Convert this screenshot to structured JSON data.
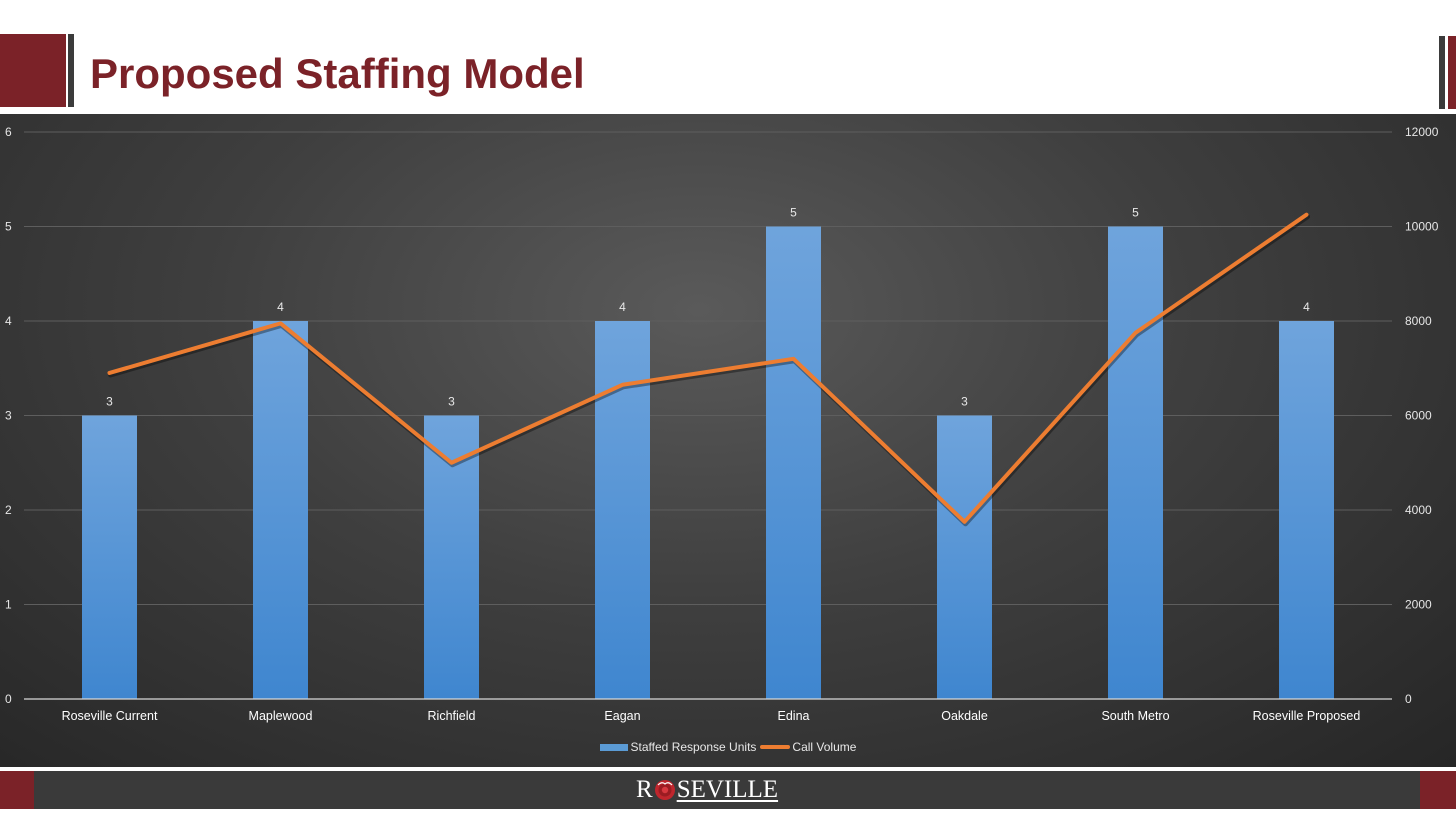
{
  "slide": {
    "title": "Proposed Staffing Model"
  },
  "colors": {
    "brand": "#7b2228",
    "bar": "#5b9bd5",
    "line": "#ed7d31"
  },
  "footer": {
    "logo_r": "R",
    "logo_rest": "SEVILLE",
    "logo_mark_icon": "rose-icon"
  },
  "chart_data": {
    "type": "bar",
    "categories": [
      "Roseville Current",
      "Maplewood",
      "Richfield",
      "Eagan",
      "Edina",
      "Oakdale",
      "South Metro",
      "Roseville Proposed"
    ],
    "series": [
      {
        "name": "Staffed Response Units",
        "type": "bar",
        "axis": "left",
        "values": [
          3,
          4,
          3,
          4,
          5,
          3,
          5,
          4
        ],
        "data_labels": [
          "3",
          "4",
          "3",
          "4",
          "5",
          "3",
          "5",
          "4"
        ]
      },
      {
        "name": "Call Volume",
        "type": "line",
        "axis": "right",
        "values": [
          6900,
          7950,
          5000,
          6650,
          7200,
          3750,
          7750,
          10250
        ]
      }
    ],
    "y_left": {
      "range": [
        0,
        6
      ],
      "ticks": [
        "0",
        "1",
        "2",
        "3",
        "4",
        "5",
        "6"
      ]
    },
    "y_right": {
      "range": [
        0,
        12000
      ],
      "ticks": [
        "0",
        "2000",
        "4000",
        "6000",
        "8000",
        "10000",
        "12000"
      ]
    },
    "grid": true,
    "legend": "bottom-center"
  }
}
